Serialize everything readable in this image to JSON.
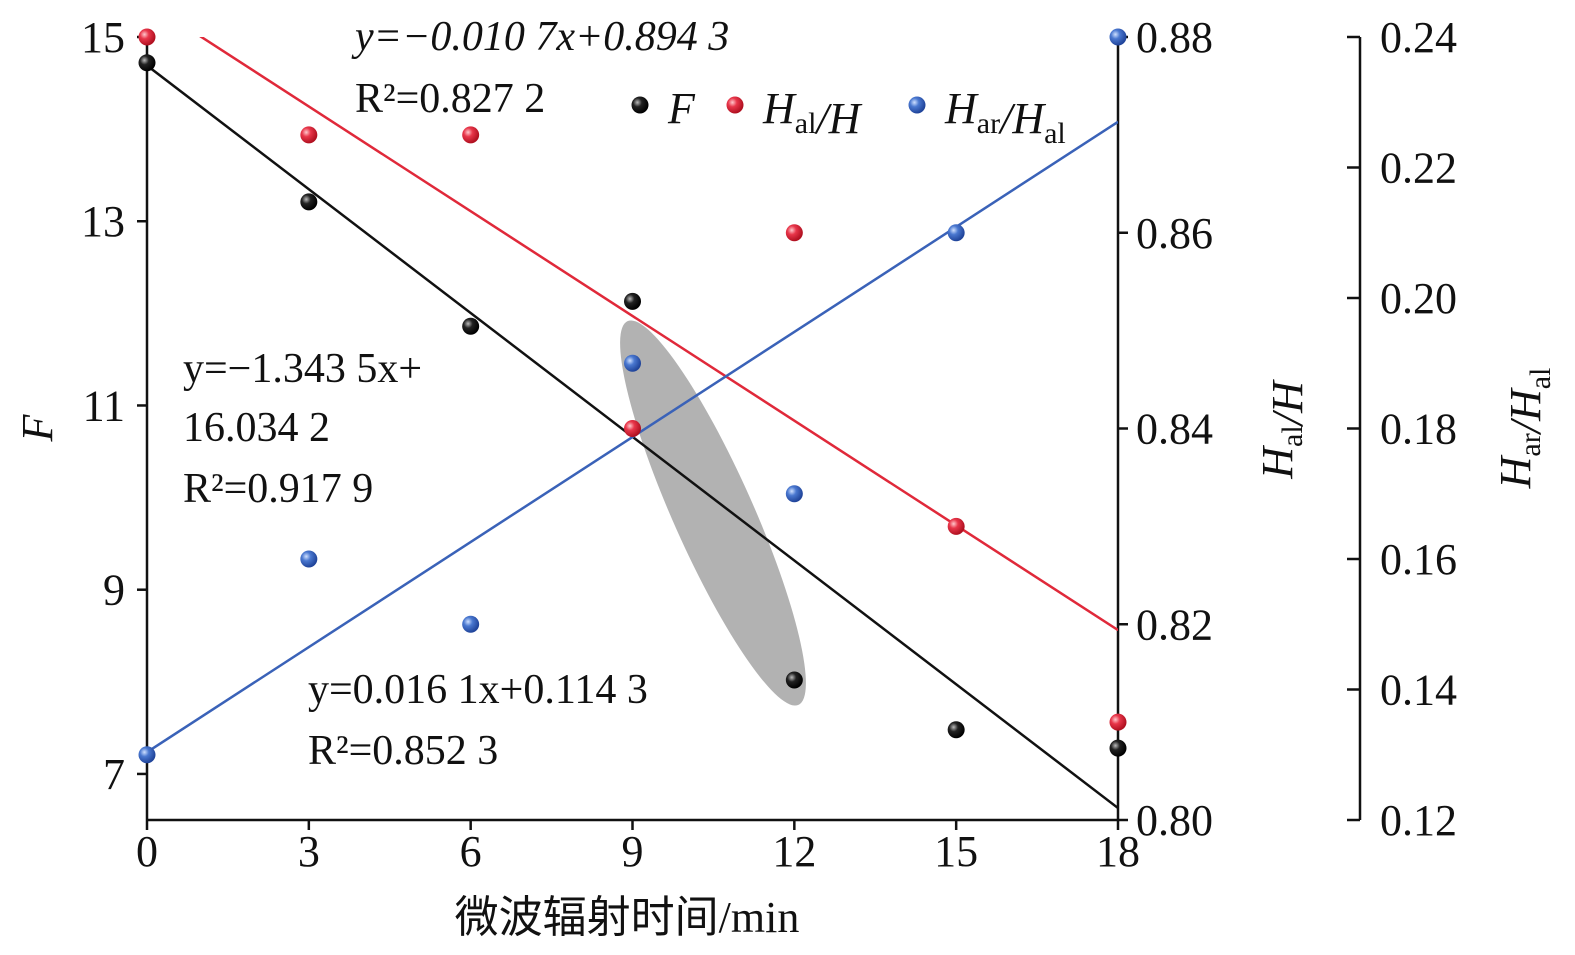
{
  "chart_data": {
    "type": "scatter",
    "xlabel": "微波辐射时间/min",
    "x": [
      0,
      3,
      6,
      9,
      12,
      15,
      18
    ],
    "xticks": [
      "0",
      "3",
      "6",
      "9",
      "12",
      "15",
      "18"
    ],
    "xlim": [
      0,
      18
    ],
    "axes": [
      {
        "id": "F",
        "label_parts": [
          [
            "F",
            ""
          ]
        ],
        "ylim": [
          6.5,
          15
        ],
        "ticks": [
          "7",
          "9",
          "11",
          "13",
          "15"
        ],
        "tick_values": [
          7,
          9,
          11,
          13,
          15
        ]
      },
      {
        "id": "Hal_H",
        "label_parts": [
          [
            "H",
            "al"
          ],
          [
            "/H",
            ""
          ]
        ],
        "ylim": [
          0.8,
          0.88
        ],
        "ticks": [
          "0.80",
          "0.82",
          "0.84",
          "0.86",
          "0.88"
        ],
        "tick_values": [
          0.8,
          0.82,
          0.84,
          0.86,
          0.88
        ]
      },
      {
        "id": "Har_Hal",
        "label_parts": [
          [
            "H",
            "ar"
          ],
          [
            "/H",
            "al"
          ]
        ],
        "ylim": [
          0.12,
          0.24
        ],
        "ticks": [
          "0.12",
          "0.14",
          "0.16",
          "0.18",
          "0.20",
          "0.22",
          "0.24"
        ],
        "tick_values": [
          0.12,
          0.14,
          0.16,
          0.18,
          0.2,
          0.22,
          0.24
        ]
      }
    ],
    "series": [
      {
        "name": "F",
        "axis": "F",
        "color": "#111111",
        "label_parts": [
          [
            "F",
            ""
          ]
        ],
        "values": [
          14.72,
          13.21,
          11.86,
          12.13,
          8.02,
          7.48,
          7.28
        ],
        "fit": {
          "slope": -1.3435,
          "intercept": 16.0342,
          "note_index_based": true
        },
        "equation": "y=−1.343 5x+",
        "equation2": "16.034 2",
        "r2": "R²=0.917 9"
      },
      {
        "name": "Hal/H",
        "axis": "Hal_H",
        "color": "#e0293a",
        "label_parts": [
          [
            "H",
            "al"
          ],
          [
            "/H",
            ""
          ]
        ],
        "values": [
          0.88,
          0.87,
          0.87,
          0.84,
          0.86,
          0.83,
          0.81
        ],
        "fit": {
          "slope": -0.0107,
          "intercept": 0.8943
        },
        "equation": "y=−0.010 7x+0.894 3",
        "r2": "R²=0.827 2"
      },
      {
        "name": "Har/Hal",
        "axis": "Har_Hal",
        "color": "#3a62b8",
        "label_parts": [
          [
            "H",
            "ar"
          ],
          [
            "/H",
            "al"
          ]
        ],
        "values": [
          0.13,
          0.16,
          0.15,
          0.19,
          0.17,
          0.21,
          0.24
        ],
        "fit": {
          "slope": 0.0161,
          "intercept": 0.1143
        },
        "equation": "y=0.016 1x+0.114 3",
        "r2": "R²=0.852 3"
      }
    ],
    "legend": "top-right",
    "grid": false,
    "highlight": "gray ellipse around x=9–12"
  }
}
